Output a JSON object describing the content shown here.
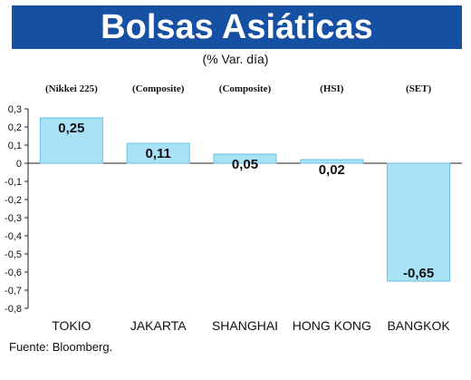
{
  "title": "Bolsas Asiáticas",
  "subtitle": "(% Var. día)",
  "source": "Fuente: Bloomberg.",
  "colors": {
    "title_bar": "#1650a3",
    "bar_fill": "#a9e2f7",
    "bar_stroke": "#69c0e5"
  },
  "chart_data": {
    "type": "bar",
    "categories": [
      "TOKIO",
      "JAKARTA",
      "SHANGHAI",
      "HONG KONG",
      "BANGKOK"
    ],
    "index_labels": [
      "(Nikkei 225)",
      "(Composite)",
      "(Composite)",
      "(HSI)",
      "(SET)"
    ],
    "values": [
      0.25,
      0.11,
      0.05,
      0.02,
      -0.65
    ],
    "value_labels": [
      "0,25",
      "0,11",
      "0,05",
      "0,02",
      "-0,65"
    ],
    "ylim": [
      -0.8,
      0.3
    ],
    "yticks": [
      0.3,
      0.2,
      0.1,
      0,
      -0.1,
      -0.2,
      -0.3,
      -0.4,
      -0.5,
      -0.6,
      -0.7,
      -0.8
    ],
    "ytick_labels": [
      "0,3",
      "0,2",
      "0,1",
      "0",
      "-0,1",
      "-0,2",
      "-0,3",
      "-0,4",
      "-0,5",
      "-0,6",
      "-0,7",
      "-0,8"
    ],
    "grid": false,
    "xlabel": "",
    "ylabel": ""
  }
}
